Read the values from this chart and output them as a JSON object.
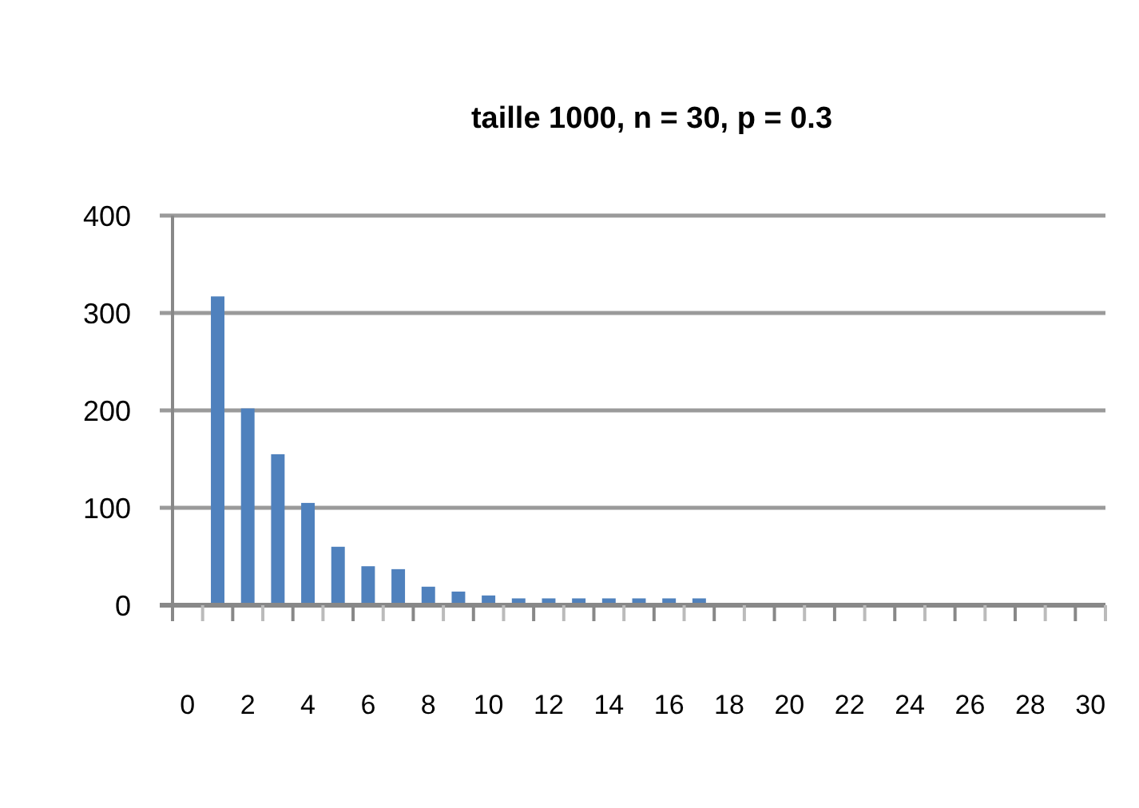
{
  "chart_data": {
    "type": "bar",
    "title": "taille 1000,  n = 30, p = 0.3",
    "x": [
      0,
      1,
      2,
      3,
      4,
      5,
      6,
      7,
      8,
      9,
      10,
      11,
      12,
      13,
      14,
      15,
      16,
      17,
      18,
      19,
      20,
      21,
      22,
      23,
      24,
      25,
      26,
      27,
      28,
      29,
      30
    ],
    "values": [
      0,
      317,
      202,
      155,
      105,
      60,
      40,
      37,
      19,
      14,
      10,
      7,
      7,
      7,
      7,
      7,
      7,
      7,
      0,
      0,
      0,
      0,
      0,
      0,
      0,
      0,
      0,
      0,
      0,
      0,
      0
    ],
    "color": "#4f81bd",
    "xlim": [
      -0.5,
      30.5
    ],
    "xticks": [
      0,
      2,
      4,
      6,
      8,
      10,
      12,
      14,
      16,
      18,
      20,
      22,
      24,
      26,
      28,
      30
    ],
    "ylim": [
      0,
      400
    ],
    "yticks": [
      0,
      100,
      200,
      300,
      400
    ],
    "grid": "y"
  }
}
